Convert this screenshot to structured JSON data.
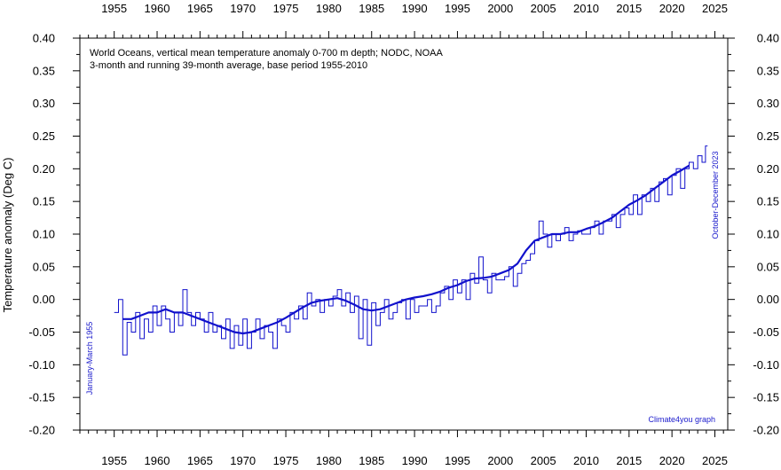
{
  "chart_data": {
    "type": "line",
    "title": "World Oceans, vertical mean temperature anomaly 0-700 m depth; NODC, NOAA",
    "subtitle": "3-month and running 39-month average, base period 1955-2010",
    "xlabel": "",
    "ylabel": "Temperature anomaly (Deg C)",
    "xlim": [
      1951.0,
      2026.5
    ],
    "ylim": [
      -0.2,
      0.4
    ],
    "x_ticks": [
      1955,
      1960,
      1965,
      1970,
      1975,
      1980,
      1985,
      1990,
      1995,
      2000,
      2005,
      2010,
      2015,
      2020,
      2025
    ],
    "y_ticks": [
      -0.2,
      -0.15,
      -0.1,
      -0.05,
      0.0,
      0.05,
      0.1,
      0.15,
      0.2,
      0.25,
      0.3,
      0.35,
      0.4
    ],
    "y_tick_labels": [
      "-0.20",
      "-0.15",
      "-0.10",
      "-0.05",
      "0.00",
      "0.05",
      "0.10",
      "0.15",
      "0.20",
      "0.25",
      "0.30",
      "0.35",
      "0.40"
    ],
    "grid": false,
    "annotations": {
      "start": "January-March 1955",
      "end": "October-December 2023",
      "credit": "Climate4you graph"
    },
    "colors": {
      "series": "#1111cc",
      "frame": "#000000"
    },
    "series": [
      {
        "style": "step-thin",
        "x": [
          1955.0,
          1955.5,
          1956.0,
          1956.5,
          1957.0,
          1957.5,
          1958.0,
          1958.5,
          1959.0,
          1959.5,
          1960.0,
          1960.5,
          1961.0,
          1961.5,
          1962.0,
          1962.5,
          1963.0,
          1963.5,
          1964.0,
          1964.5,
          1965.0,
          1965.5,
          1966.0,
          1966.5,
          1967.0,
          1967.5,
          1968.0,
          1968.5,
          1969.0,
          1969.5,
          1970.0,
          1970.5,
          1971.0,
          1971.5,
          1972.0,
          1972.5,
          1973.0,
          1973.5,
          1974.0,
          1974.5,
          1975.0,
          1975.5,
          1976.0,
          1976.5,
          1977.0,
          1977.5,
          1978.0,
          1978.5,
          1979.0,
          1979.5,
          1980.0,
          1980.5,
          1981.0,
          1981.5,
          1982.0,
          1982.5,
          1983.0,
          1983.5,
          1984.0,
          1984.5,
          1985.0,
          1985.5,
          1986.0,
          1986.5,
          1987.0,
          1987.5,
          1988.0,
          1988.5,
          1989.0,
          1989.5,
          1990.0,
          1990.5,
          1991.0,
          1991.5,
          1992.0,
          1992.5,
          1993.0,
          1993.5,
          1994.0,
          1994.5,
          1995.0,
          1995.5,
          1996.0,
          1996.5,
          1997.0,
          1997.5,
          1998.0,
          1998.5,
          1999.0,
          1999.5,
          2000.0,
          2000.5,
          2001.0,
          2001.5,
          2002.0,
          2002.5,
          2003.0,
          2003.5,
          2004.0,
          2004.5,
          2005.0,
          2005.5,
          2006.0,
          2006.5,
          2007.0,
          2007.5,
          2008.0,
          2008.5,
          2009.0,
          2009.5,
          2010.0,
          2010.5,
          2011.0,
          2011.5,
          2012.0,
          2012.5,
          2013.0,
          2013.5,
          2014.0,
          2014.5,
          2015.0,
          2015.5,
          2016.0,
          2016.5,
          2017.0,
          2017.5,
          2018.0,
          2018.5,
          2019.0,
          2019.5,
          2020.0,
          2020.5,
          2021.0,
          2021.5,
          2022.0,
          2022.5,
          2023.0,
          2023.5,
          2023.9
        ],
        "y": [
          -0.02,
          0.0,
          -0.085,
          -0.035,
          -0.05,
          -0.02,
          -0.06,
          -0.03,
          -0.05,
          -0.01,
          -0.04,
          -0.01,
          -0.03,
          -0.05,
          -0.02,
          -0.04,
          0.015,
          -0.02,
          -0.04,
          -0.02,
          -0.03,
          -0.05,
          -0.02,
          -0.05,
          -0.04,
          -0.06,
          -0.03,
          -0.075,
          -0.04,
          -0.07,
          -0.03,
          -0.075,
          -0.05,
          -0.03,
          -0.06,
          -0.04,
          -0.05,
          -0.075,
          -0.03,
          -0.04,
          -0.05,
          -0.02,
          -0.03,
          -0.01,
          -0.03,
          0.01,
          -0.01,
          0.0,
          -0.02,
          0.0,
          -0.01,
          0.005,
          0.015,
          -0.01,
          0.01,
          -0.02,
          0.005,
          -0.06,
          0.0,
          -0.07,
          -0.005,
          -0.04,
          -0.02,
          0.0,
          -0.03,
          -0.02,
          -0.005,
          0.0,
          -0.03,
          0.0,
          -0.02,
          -0.01,
          -0.01,
          0.0,
          -0.02,
          -0.01,
          0.01,
          0.02,
          0.0,
          0.03,
          0.01,
          0.03,
          0.0,
          0.04,
          0.025,
          0.065,
          0.03,
          0.01,
          0.04,
          0.03,
          0.03,
          0.035,
          0.05,
          0.02,
          0.04,
          0.055,
          0.06,
          0.07,
          0.09,
          0.12,
          0.1,
          0.08,
          0.1,
          0.09,
          0.1,
          0.11,
          0.09,
          0.1,
          0.105,
          0.1,
          0.1,
          0.11,
          0.12,
          0.1,
          0.12,
          0.12,
          0.13,
          0.11,
          0.13,
          0.14,
          0.13,
          0.16,
          0.13,
          0.16,
          0.15,
          0.17,
          0.15,
          0.18,
          0.185,
          0.16,
          0.19,
          0.2,
          0.17,
          0.2,
          0.21,
          0.2,
          0.22,
          0.21,
          0.235
        ]
      },
      {
        "style": "smooth-thick",
        "x": [
          1956.0,
          1957.0,
          1958.0,
          1959.0,
          1960.0,
          1961.0,
          1962.0,
          1963.0,
          1964.0,
          1965.0,
          1966.0,
          1967.0,
          1968.0,
          1969.0,
          1970.0,
          1971.0,
          1972.0,
          1973.0,
          1974.0,
          1975.0,
          1976.0,
          1977.0,
          1978.0,
          1979.0,
          1980.0,
          1981.0,
          1982.0,
          1983.0,
          1984.0,
          1985.0,
          1986.0,
          1987.0,
          1988.0,
          1989.0,
          1990.0,
          1991.0,
          1992.0,
          1993.0,
          1994.0,
          1995.0,
          1996.0,
          1997.0,
          1998.0,
          1999.0,
          2000.0,
          2001.0,
          2002.0,
          2003.0,
          2004.0,
          2005.0,
          2006.0,
          2007.0,
          2008.0,
          2009.0,
          2010.0,
          2011.0,
          2012.0,
          2013.0,
          2014.0,
          2015.0,
          2016.0,
          2017.0,
          2018.0,
          2019.0,
          2020.0,
          2021.0,
          2022.0
        ],
        "y": [
          -0.03,
          -0.03,
          -0.025,
          -0.02,
          -0.02,
          -0.015,
          -0.02,
          -0.02,
          -0.025,
          -0.03,
          -0.035,
          -0.04,
          -0.045,
          -0.05,
          -0.052,
          -0.05,
          -0.045,
          -0.04,
          -0.035,
          -0.028,
          -0.02,
          -0.012,
          -0.005,
          -0.002,
          0.0,
          0.002,
          -0.002,
          -0.008,
          -0.015,
          -0.017,
          -0.015,
          -0.01,
          -0.005,
          0.0,
          0.003,
          0.005,
          0.008,
          0.012,
          0.018,
          0.022,
          0.028,
          0.032,
          0.033,
          0.035,
          0.04,
          0.045,
          0.055,
          0.075,
          0.09,
          0.095,
          0.1,
          0.1,
          0.103,
          0.103,
          0.108,
          0.112,
          0.118,
          0.125,
          0.135,
          0.145,
          0.152,
          0.16,
          0.17,
          0.18,
          0.19,
          0.197,
          0.205
        ]
      }
    ]
  }
}
